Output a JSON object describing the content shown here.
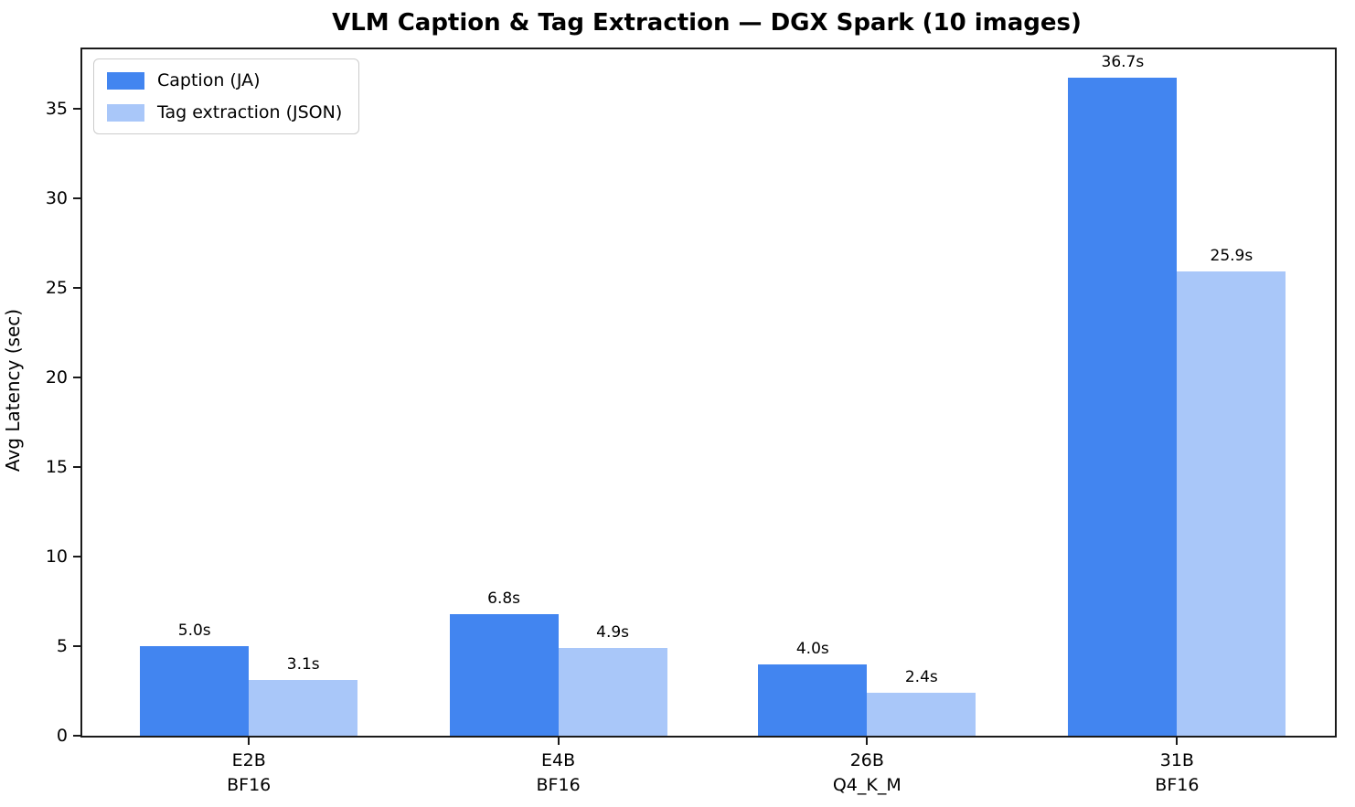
{
  "title": "VLM Caption & Tag Extraction — DGX Spark (10 images)",
  "chart_data": {
    "type": "bar",
    "title": "VLM Caption & Tag Extraction — DGX Spark (10 images)",
    "xlabel": "",
    "ylabel": "Avg Latency (sec)",
    "categories": [
      [
        "E2B",
        "BF16"
      ],
      [
        "E4B",
        "BF16"
      ],
      [
        "26B",
        "Q4_K_M"
      ],
      [
        "31B",
        "BF16"
      ]
    ],
    "series": [
      {
        "name": "Caption (JA)",
        "color": "#4285F0",
        "values": [
          5.0,
          6.8,
          4.0,
          36.7
        ],
        "labels": [
          "5.0s",
          "6.8s",
          "4.0s",
          "36.7s"
        ]
      },
      {
        "name": "Tag extraction (JSON)",
        "color": "#A9C7F9",
        "values": [
          3.1,
          4.9,
          2.4,
          25.9
        ],
        "labels": [
          "3.1s",
          "4.9s",
          "2.4s",
          "25.9s"
        ]
      }
    ],
    "yticks": [
      0,
      5,
      10,
      15,
      20,
      25,
      30,
      35
    ],
    "ylim": [
      0,
      38.3
    ],
    "legend_position": "upper left",
    "grid": false,
    "frame": "box"
  }
}
